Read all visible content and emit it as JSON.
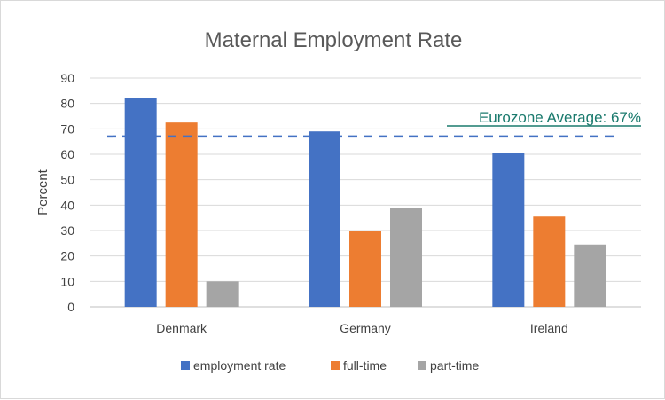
{
  "chart_data": {
    "type": "bar",
    "title": "Maternal Employment Rate",
    "ylabel": "Percent",
    "xlabel": "",
    "categories": [
      "Denmark",
      "Germany",
      "Ireland"
    ],
    "series": [
      {
        "name": "employment rate",
        "color": "#4472c4",
        "values": [
          82,
          69,
          60.5
        ]
      },
      {
        "name": "full-time",
        "color": "#ed7d31",
        "values": [
          72.5,
          30,
          35.5
        ]
      },
      {
        "name": "part-time",
        "color": "#a5a5a5",
        "values": [
          10,
          39,
          24.5
        ]
      }
    ],
    "ylim": [
      0,
      90
    ],
    "yticks": [
      "0",
      "10",
      "20",
      "30",
      "40",
      "50",
      "60",
      "70",
      "80",
      "90"
    ],
    "grid": true,
    "legend": "bottom",
    "reference_line": {
      "value": 67,
      "label": "Eurozone Average: 67%",
      "line_color": "#4472c4",
      "text_color": "#1a7a6d"
    }
  }
}
